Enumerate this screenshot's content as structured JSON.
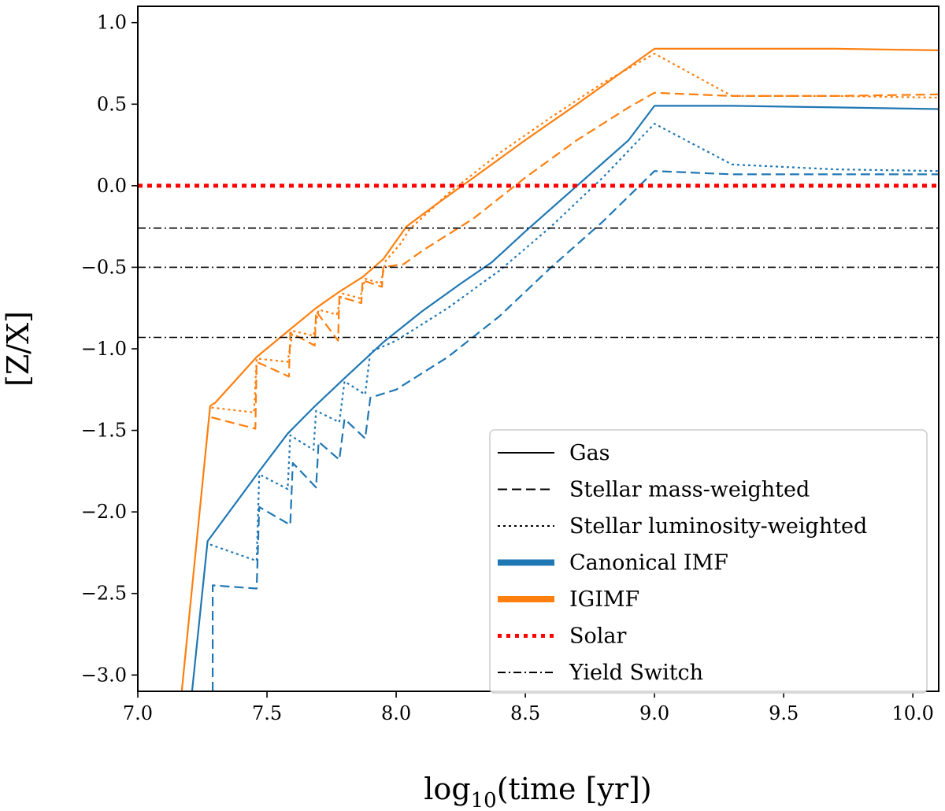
{
  "chart_data": {
    "type": "line",
    "xlabel": "log10(time [yr])",
    "xlabel_parts": {
      "base": "log",
      "sub": "10",
      "rest": "(time [yr])"
    },
    "ylabel": "[Z/X]",
    "xlim": [
      7.0,
      10.1
    ],
    "ylim": [
      -3.1,
      1.1
    ],
    "xticks": [
      7.0,
      7.5,
      8.0,
      8.5,
      9.0,
      9.5,
      10.0
    ],
    "xtick_labels": [
      "7.0",
      "7.5",
      "8.0",
      "8.5",
      "9.0",
      "9.5",
      "10.0"
    ],
    "yticks": [
      1.0,
      0.5,
      0.0,
      -0.5,
      -1.0,
      -1.5,
      -2.0,
      -2.5,
      -3.0
    ],
    "ytick_labels": [
      "1.0",
      "0.5",
      "0.0",
      "−0.5",
      "−1.0",
      "−1.5",
      "−2.0",
      "−2.5",
      "−3.0"
    ],
    "grid": false,
    "legend_position": "lower-right",
    "legend": [
      {
        "label": "Gas",
        "style": "solid",
        "color": "#000000",
        "kind": "linestyle"
      },
      {
        "label": "Stellar mass-weighted",
        "style": "dashed",
        "color": "#000000",
        "kind": "linestyle"
      },
      {
        "label": "Stellar luminosity-weighted",
        "style": "dotted",
        "color": "#000000",
        "kind": "linestyle"
      },
      {
        "label": "Canonical IMF",
        "style": "solid",
        "color": "#1f77b4",
        "kind": "thick"
      },
      {
        "label": "IGIMF",
        "style": "solid",
        "color": "#ff7f0e",
        "kind": "thick"
      },
      {
        "label": "Solar",
        "style": "dotted",
        "color": "#ff0000",
        "kind": "thickdot"
      },
      {
        "label": "Yield Switch",
        "style": "dashdot",
        "color": "#000000",
        "kind": "linestyle"
      }
    ],
    "hlines": [
      {
        "name": "solar",
        "y": 0.0,
        "color": "#ff0000",
        "style": "dotted"
      },
      {
        "name": "yield-switch-1",
        "y": -0.26,
        "color": "#000000",
        "style": "dashdot"
      },
      {
        "name": "yield-switch-2",
        "y": -0.5,
        "color": "#000000",
        "style": "dashdot"
      },
      {
        "name": "yield-switch-3",
        "y": -0.93,
        "color": "#000000",
        "style": "dashdot"
      }
    ],
    "series": [
      {
        "name": "IGIMF Gas",
        "imf": "IGIMF",
        "kind": "Gas",
        "color": "#ff7f0e",
        "style": "solid",
        "x": [
          7.17,
          7.28,
          7.3,
          7.46,
          7.59,
          7.69,
          7.78,
          7.87,
          7.95,
          8.04,
          8.15,
          8.3,
          8.5,
          8.7,
          8.85,
          9.0,
          9.3,
          9.7,
          10.1
        ],
        "y": [
          -3.1,
          -1.35,
          -1.33,
          -1.05,
          -0.88,
          -0.75,
          -0.65,
          -0.56,
          -0.45,
          -0.25,
          -0.12,
          0.05,
          0.28,
          0.5,
          0.67,
          0.84,
          0.84,
          0.84,
          0.83
        ]
      },
      {
        "name": "IGIMF Stellar luminosity-weighted",
        "imf": "IGIMF",
        "kind": "Stellar luminosity-weighted",
        "color": "#ff7f0e",
        "style": "dotted",
        "x": [
          7.285,
          7.45,
          7.46,
          7.58,
          7.6,
          7.68,
          7.7,
          7.77,
          7.79,
          7.86,
          7.88,
          7.94,
          7.96,
          8.02,
          8.05,
          8.2,
          8.4,
          8.6,
          8.8,
          9.0,
          9.3,
          9.7,
          10.1
        ],
        "y": [
          -1.36,
          -1.39,
          -1.06,
          -1.08,
          -0.89,
          -0.92,
          -0.76,
          -0.79,
          -0.66,
          -0.69,
          -0.57,
          -0.6,
          -0.46,
          -0.35,
          -0.27,
          -0.05,
          0.2,
          0.42,
          0.63,
          0.81,
          0.55,
          0.55,
          0.54
        ]
      },
      {
        "name": "IGIMF Stellar mass-weighted",
        "imf": "IGIMF",
        "kind": "Stellar mass-weighted",
        "color": "#ff7f0e",
        "style": "dashed",
        "x": [
          7.285,
          7.455,
          7.46,
          7.585,
          7.59,
          7.685,
          7.69,
          7.775,
          7.78,
          7.865,
          7.87,
          7.945,
          7.95,
          8.03,
          8.1,
          8.3,
          8.5,
          8.7,
          8.9,
          9.0,
          9.3,
          9.7,
          10.1
        ],
        "y": [
          -1.42,
          -1.49,
          -1.08,
          -1.17,
          -0.9,
          -0.98,
          -0.77,
          -0.95,
          -0.68,
          -0.72,
          -0.58,
          -0.62,
          -0.5,
          -0.48,
          -0.4,
          -0.2,
          0.05,
          0.28,
          0.48,
          0.57,
          0.55,
          0.55,
          0.56
        ]
      },
      {
        "name": "Canonical IMF Gas",
        "imf": "Canonical IMF",
        "kind": "Gas",
        "color": "#1f77b4",
        "style": "solid",
        "x": [
          7.21,
          7.27,
          7.47,
          7.58,
          7.68,
          7.8,
          7.95,
          8.1,
          8.25,
          8.37,
          8.5,
          8.7,
          8.9,
          9.0,
          9.3,
          9.7,
          10.1
        ],
        "y": [
          -3.1,
          -2.18,
          -1.75,
          -1.52,
          -1.36,
          -1.18,
          -0.96,
          -0.77,
          -0.6,
          -0.47,
          -0.28,
          0.0,
          0.28,
          0.49,
          0.49,
          0.48,
          0.47
        ]
      },
      {
        "name": "Canonical IMF Stellar luminosity-weighted",
        "imf": "Canonical IMF",
        "kind": "Stellar luminosity-weighted",
        "color": "#1f77b4",
        "style": "dotted",
        "x": [
          7.28,
          7.46,
          7.47,
          7.58,
          7.59,
          7.68,
          7.69,
          7.78,
          7.8,
          7.88,
          7.9,
          8.0,
          8.2,
          8.4,
          8.6,
          8.8,
          9.0,
          9.3,
          9.7,
          10.1
        ],
        "y": [
          -2.2,
          -2.3,
          -1.77,
          -1.86,
          -1.53,
          -1.62,
          -1.38,
          -1.45,
          -1.2,
          -1.28,
          -1.02,
          -0.95,
          -0.75,
          -0.52,
          -0.25,
          0.05,
          0.38,
          0.13,
          0.1,
          0.09
        ]
      },
      {
        "name": "Canonical IMF Stellar mass-weighted",
        "imf": "Canonical IMF",
        "kind": "Stellar mass-weighted",
        "color": "#1f77b4",
        "style": "dashed",
        "x": [
          7.29,
          7.29,
          7.46,
          7.47,
          7.59,
          7.6,
          7.69,
          7.7,
          7.78,
          7.8,
          7.88,
          7.9,
          8.0,
          8.2,
          8.4,
          8.6,
          8.8,
          9.0,
          9.3,
          9.7,
          10.1
        ],
        "y": [
          -3.1,
          -2.45,
          -2.47,
          -1.97,
          -2.08,
          -1.7,
          -1.85,
          -1.57,
          -1.68,
          -1.43,
          -1.55,
          -1.3,
          -1.25,
          -1.05,
          -0.8,
          -0.5,
          -0.22,
          0.09,
          0.07,
          0.07,
          0.07
        ]
      }
    ]
  }
}
